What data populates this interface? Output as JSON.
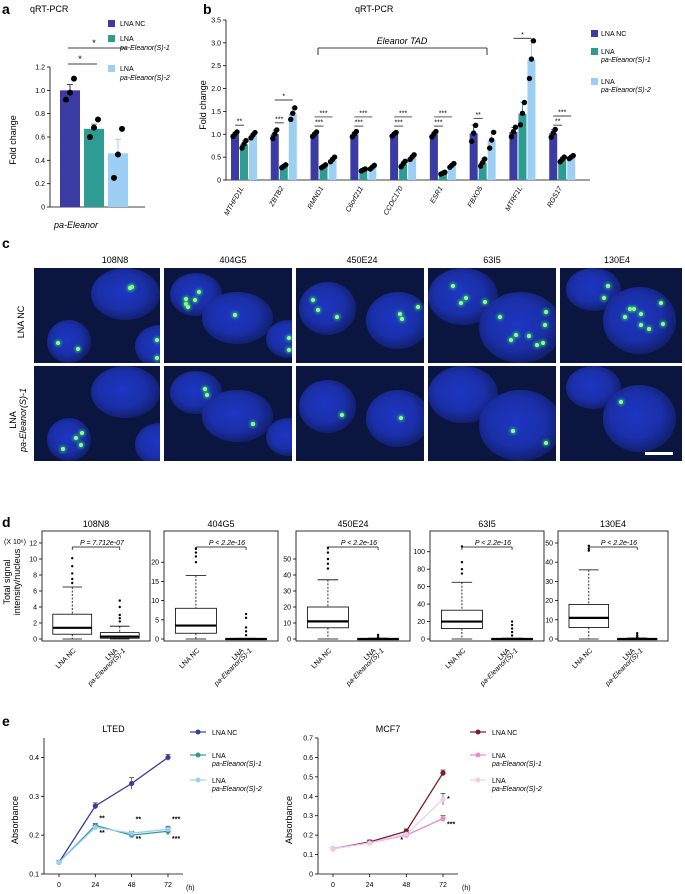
{
  "panel_labels": {
    "a": "a",
    "b": "b",
    "c": "c",
    "d": "d",
    "e": "e"
  },
  "colors": {
    "lna_nc": "#3a3ca3",
    "lna_1": "#2f9c94",
    "lna_2": "#9dcff5",
    "mcf7_nc": "#7d1c2c",
    "mcf7_1": "#e48ec3",
    "mcf7_2": "#f4c7ee",
    "microscopy_bg": "#0b1640",
    "nucleus": "#1d36c4",
    "fish_signal": "#45ff6a"
  },
  "panel_a": {
    "title": "qRT-PCR",
    "ylabel": "Fold change",
    "xlabel": "pa-Eleanor",
    "yticks": [
      "0",
      "0.2",
      "0.4",
      "0.6",
      "0.8",
      "1.0",
      "1.2"
    ],
    "legend": [
      {
        "line1": "LNA NC",
        "line2": ""
      },
      {
        "line1": "LNA",
        "line2": "pa-Eleanor(S)-1"
      },
      {
        "line1": "LNA",
        "line2": "pa-Eleanor(S)-2"
      }
    ],
    "significance": [
      "*",
      "*"
    ]
  },
  "panel_b": {
    "title": "qRT-PCR",
    "ylabel": "Fold change",
    "tad_label": "Eleanor TAD",
    "yticks": [
      "0",
      "0.5",
      "1.0",
      "1.5",
      "2.0",
      "2.5",
      "3.0",
      "3.5"
    ],
    "genes": [
      "MTHFD1L",
      "ZBTB2",
      "RMND1",
      "C6orf211",
      "CCDC170",
      "ESR1",
      "FBXO5",
      "MTRF1L",
      "RGS17"
    ],
    "legend": [
      {
        "line1": "LNA NC",
        "line2": ""
      },
      {
        "line1": "LNA",
        "line2": "pa-Eleanor(S)-1"
      },
      {
        "line1": "LNA",
        "line2": "pa-Eleanor(S)-2"
      }
    ],
    "significance": [
      "**",
      "***",
      "*",
      "***",
      "***",
      "***",
      "***",
      "***",
      "***",
      "***",
      "***",
      "***",
      "**",
      "*",
      "**",
      "***"
    ]
  },
  "panel_c": {
    "columns": [
      "108N8",
      "404G5",
      "450E24",
      "63I5",
      "130E4"
    ],
    "row1_label": "LNA NC",
    "row2_label_line1": "LNA",
    "row2_label_line2": "pa-Eleanor(S)-1"
  },
  "panel_d": {
    "ylabel_line1": "Total signal",
    "ylabel_line2": "intensity/nucleus",
    "scale_note": "(X 10⁶)",
    "xlabels": {
      "nc": "LNA NC",
      "kd_line1": "LNA",
      "kd_line2": "pa-Eleanor(S)-1"
    }
  },
  "panel_e": {
    "ylabel": "Absorbance",
    "xunit": "(h)",
    "legend_lted": [
      {
        "line1": "LNA NC",
        "line2": ""
      },
      {
        "line1": "LNA",
        "line2": "pa-Eleanor(S)-1"
      },
      {
        "line1": "LNA",
        "line2": "pa-Eleanor(S)-2"
      }
    ],
    "legend_mcf7": [
      {
        "line1": "LNA NC",
        "line2": ""
      },
      {
        "line1": "LNA",
        "line2": "pa-Eleanor(S)-1"
      },
      {
        "line1": "LNA",
        "line2": "pa-Eleanor(S)-2"
      }
    ],
    "sig_lted": [
      "**",
      "**",
      "***",
      "**",
      "**",
      "***"
    ],
    "sig_mcf7": [
      "*",
      "*",
      "***"
    ]
  },
  "chart_data": [
    {
      "type": "bar",
      "title": "qRT-PCR",
      "xlabel": "pa-Eleanor",
      "ylabel": "Fold change",
      "ylim": [
        0,
        1.2
      ],
      "categories": [
        "pa-Eleanor"
      ],
      "series": [
        {
          "name": "LNA NC",
          "values": [
            1.0
          ],
          "errors": [
            0.05
          ],
          "points": [
            [
              0.92,
              0.98,
              1.1
            ]
          ]
        },
        {
          "name": "LNA pa-Eleanor(S)-1",
          "values": [
            0.67
          ],
          "errors": [
            0.04
          ],
          "points": [
            [
              0.6,
              0.68,
              0.75
            ]
          ]
        },
        {
          "name": "LNA pa-Eleanor(S)-2",
          "values": [
            0.46
          ],
          "errors": [
            0.12
          ],
          "points": [
            [
              0.25,
              0.45,
              0.67
            ]
          ]
        }
      ]
    },
    {
      "type": "bar",
      "title": "qRT-PCR",
      "ylabel": "Fold change",
      "ylim": [
        0,
        3.5
      ],
      "categories": [
        "MTHFD1L",
        "ZBTB2",
        "RMND1",
        "C6orf211",
        "CCDC170",
        "ESR1",
        "FBXO5",
        "MTRF1L",
        "RGS17"
      ],
      "series": [
        {
          "name": "LNA NC",
          "values": [
            1.0,
            1.0,
            1.0,
            1.0,
            1.0,
            1.0,
            1.02,
            1.05,
            1.02
          ],
          "errors": [
            0.04,
            0.09,
            0.04,
            0.05,
            0.03,
            0.05,
            0.18,
            0.1,
            0.08
          ]
        },
        {
          "name": "LNA pa-Eleanor(S)-1",
          "values": [
            0.78,
            0.3,
            0.3,
            0.22,
            0.35,
            0.15,
            0.38,
            1.45,
            0.45
          ],
          "errors": [
            0.08,
            0.03,
            0.03,
            0.02,
            0.06,
            0.02,
            0.08,
            0.25,
            0.05
          ]
        },
        {
          "name": "LNA pa-Eleanor(S)-2",
          "values": [
            0.98,
            1.45,
            0.45,
            0.28,
            0.5,
            0.32,
            0.87,
            2.63,
            0.5
          ],
          "errors": [
            0.05,
            0.12,
            0.05,
            0.04,
            0.05,
            0.04,
            0.18,
            0.42,
            0.03
          ]
        }
      ]
    },
    {
      "type": "box",
      "title": "108N8",
      "annotation": "P = 7.712e-07",
      "ylim": [
        0,
        12
      ],
      "yticks": [
        0,
        2,
        4,
        6,
        8,
        10,
        12
      ],
      "groups": [
        {
          "name": "LNA NC",
          "whisker_low": 0,
          "q1": 0.6,
          "median": 1.4,
          "q3": 3.1,
          "whisker_high": 6.5,
          "outliers": [
            7.0,
            7.5,
            8.2,
            9.1,
            10.1
          ]
        },
        {
          "name": "LNA pa-Eleanor(S)-1",
          "whisker_low": 0,
          "q1": 0.1,
          "median": 0.3,
          "q3": 0.8,
          "whisker_high": 1.6,
          "outliers": [
            2.2,
            2.6,
            3.0,
            4.0,
            4.8
          ]
        }
      ]
    },
    {
      "type": "box",
      "title": "404G5",
      "annotation": "P < 2.2e-16",
      "ylim": [
        0,
        25
      ],
      "yticks": [
        0,
        5,
        10,
        15,
        20
      ],
      "groups": [
        {
          "name": "LNA NC",
          "whisker_low": 0,
          "q1": 1.5,
          "median": 3.5,
          "q3": 8.0,
          "whisker_high": 16.5,
          "outliers": [
            20,
            21.5,
            22.5,
            23.5
          ]
        },
        {
          "name": "LNA pa-Eleanor(S)-1",
          "whisker_low": 0,
          "q1": 0,
          "median": 0,
          "q3": 0.1,
          "whisker_high": 0.2,
          "outliers": [
            1,
            2,
            3,
            5.5,
            6.5
          ]
        }
      ]
    },
    {
      "type": "box",
      "title": "450E24",
      "annotation": "P < 2.2e-16",
      "ylim": [
        0,
        60
      ],
      "yticks": [
        0,
        10,
        20,
        30,
        40,
        50
      ],
      "groups": [
        {
          "name": "LNA NC",
          "whisker_low": 0,
          "q1": 7,
          "median": 11,
          "q3": 20,
          "whisker_high": 37,
          "outliers": [
            44,
            47,
            50,
            54,
            57
          ]
        },
        {
          "name": "LNA pa-Eleanor(S)-1",
          "whisker_low": 0,
          "q1": 0,
          "median": 0,
          "q3": 0.2,
          "whisker_high": 0.5,
          "outliers": [
            1.2,
            2.5
          ]
        }
      ]
    },
    {
      "type": "box",
      "title": "63I5",
      "annotation": "P < 2.2e-16",
      "ylim": [
        0,
        110
      ],
      "yticks": [
        0,
        20,
        40,
        60,
        80,
        100
      ],
      "groups": [
        {
          "name": "LNA NC",
          "whisker_low": 0,
          "q1": 12,
          "median": 20,
          "q3": 33,
          "whisker_high": 65,
          "outliers": [
            75,
            80,
            88,
            106
          ]
        },
        {
          "name": "LNA pa-Eleanor(S)-1",
          "whisker_low": 0,
          "q1": 0,
          "median": 0,
          "q3": 0.5,
          "whisker_high": 1,
          "outliers": [
            4,
            8,
            12,
            16,
            20
          ]
        }
      ]
    },
    {
      "type": "box",
      "title": "130E4",
      "annotation": "P < 2.2e-16",
      "ylim": [
        0,
        50
      ],
      "yticks": [
        0,
        10,
        20,
        30,
        40,
        50
      ],
      "groups": [
        {
          "name": "LNA NC",
          "whisker_low": 0,
          "q1": 6,
          "median": 11,
          "q3": 18,
          "whisker_high": 36,
          "outliers": [
            46,
            47,
            48.5
          ]
        },
        {
          "name": "LNA pa-Eleanor(S)-1",
          "whisker_low": 0,
          "q1": 0,
          "median": 0,
          "q3": 0.2,
          "whisker_high": 0.5,
          "outliers": [
            1,
            2,
            3
          ]
        }
      ]
    },
    {
      "type": "line",
      "title": "LTED",
      "ylabel": "Absorbance",
      "xlabel": "(h)",
      "x": [
        0,
        24,
        48,
        72
      ],
      "ylim": [
        0.1,
        0.45
      ],
      "yticks": [
        0.1,
        0.2,
        0.3,
        0.4
      ],
      "series": [
        {
          "name": "LNA NC",
          "values": [
            0.13,
            0.275,
            0.333,
            0.4
          ],
          "errors": [
            0.004,
            0.008,
            0.015,
            0.008
          ]
        },
        {
          "name": "LNA pa-Eleanor(S)-1",
          "values": [
            0.13,
            0.225,
            0.2,
            0.21
          ],
          "errors": [
            0.004,
            0.005,
            0.004,
            0.01
          ]
        },
        {
          "name": "LNA pa-Eleanor(S)-2",
          "values": [
            0.13,
            0.22,
            0.205,
            0.215
          ],
          "errors": [
            0.004,
            0.005,
            0.005,
            0.008
          ]
        }
      ]
    },
    {
      "type": "line",
      "title": "MCF7",
      "ylabel": "Absorbance",
      "xlabel": "(h)",
      "x": [
        0,
        24,
        48,
        72
      ],
      "ylim": [
        0,
        0.7
      ],
      "yticks": [
        0,
        0.1,
        0.2,
        0.3,
        0.4,
        0.5,
        0.6,
        0.7
      ],
      "series": [
        {
          "name": "LNA NC",
          "values": [
            0.13,
            0.165,
            0.22,
            0.52
          ],
          "errors": [
            0.005,
            0.01,
            0.012,
            0.015
          ]
        },
        {
          "name": "LNA pa-Eleanor(S)-1",
          "values": [
            0.13,
            0.16,
            0.2,
            0.285
          ],
          "errors": [
            0.005,
            0.01,
            0.01,
            0.015
          ]
        },
        {
          "name": "LNA pa-Eleanor(S)-2",
          "values": [
            0.13,
            0.16,
            0.205,
            0.385
          ],
          "errors": [
            0.005,
            0.01,
            0.01,
            0.03
          ]
        }
      ]
    }
  ]
}
